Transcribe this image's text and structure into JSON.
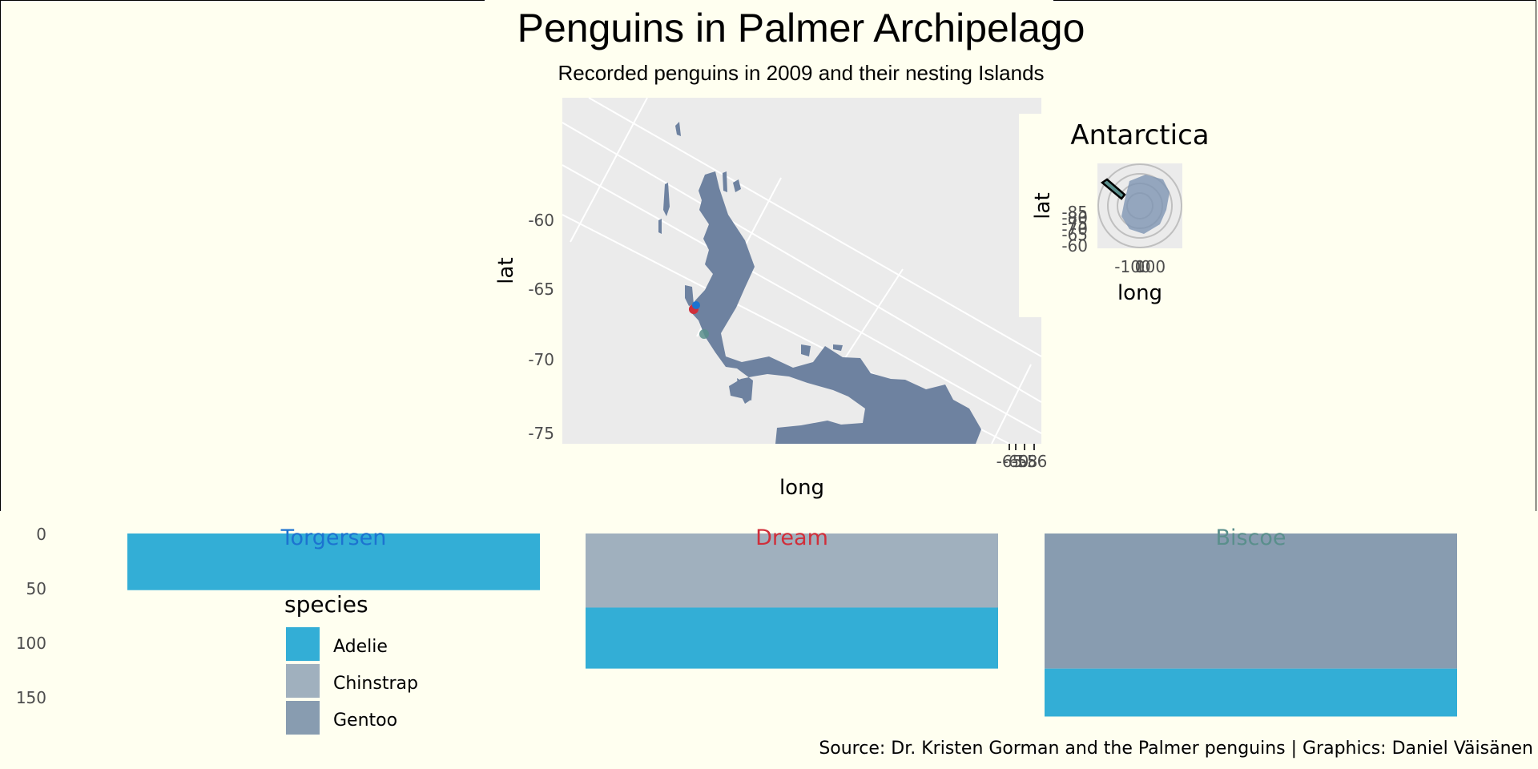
{
  "title": "Penguins in Palmer Archipelago",
  "subtitle": "Recorded penguins in 2009 and their nesting Islands",
  "source": "Source: Dr. Kristen Gorman and the Palmer penguins | Graphics: Daniel Väisänen",
  "colors": {
    "background": "#FFFFF0",
    "panel": "#EBEBEB",
    "land": "#6E82A0",
    "grid": "#FFFFFF",
    "adelie": "#33AED6",
    "chinstrap": "#A0B0BE",
    "gentoo": "#889CB0",
    "torgersen": "#1C73D0",
    "dream": "#D02E3A",
    "biscoe": "#5A8F8C"
  },
  "chart_data": [
    {
      "type": "scatter",
      "subtype": "map",
      "xlabel": "long",
      "ylabel": "lat",
      "y_ticks": [
        "-60",
        "-65",
        "-70",
        "-75"
      ],
      "x_ticks": [
        "-65",
        "-60",
        "-58",
        "-56"
      ],
      "points": [
        {
          "island": "Torgersen",
          "long": -64.08,
          "lat": -64.77
        },
        {
          "island": "Dream",
          "long": -64.23,
          "lat": -64.73
        },
        {
          "island": "Biscoe",
          "long": -66.0,
          "lat": -65.5
        }
      ]
    },
    {
      "type": "scatter",
      "subtype": "polar-map",
      "title": "Antarctica",
      "xlabel": "long",
      "ylabel": "lat",
      "y_ticks": [
        "-85",
        "-80",
        "-75",
        "-70",
        "-65",
        "-60"
      ],
      "x_ticks": [
        "-100",
        "0",
        "100"
      ]
    },
    {
      "type": "bar",
      "subtype": "stacked-facets",
      "y_axis_reversed": true,
      "ylim": [
        0,
        170
      ],
      "y_ticks": [
        "0",
        "50",
        "100",
        "150"
      ],
      "legend": {
        "title": "species",
        "position": "bottom-left",
        "entries": [
          "Adelie",
          "Chinstrap",
          "Gentoo"
        ]
      },
      "facets": [
        {
          "island": "Torgersen",
          "segments": [
            {
              "species": "Adelie",
              "value": 52
            }
          ]
        },
        {
          "island": "Dream",
          "segments": [
            {
              "species": "Chinstrap",
              "value": 68
            },
            {
              "species": "Adelie",
              "value": 56
            }
          ]
        },
        {
          "island": "Biscoe",
          "segments": [
            {
              "species": "Gentoo",
              "value": 124
            },
            {
              "species": "Adelie",
              "value": 44
            }
          ]
        }
      ]
    }
  ]
}
